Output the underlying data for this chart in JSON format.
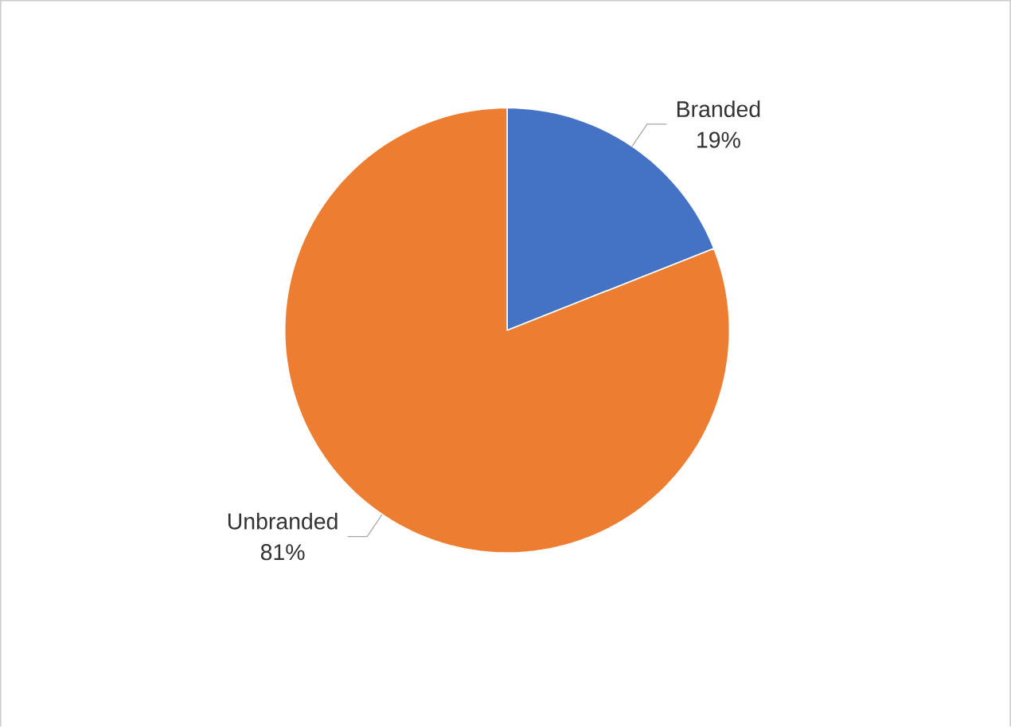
{
  "chart_data": {
    "type": "pie",
    "categories": [
      "Branded",
      "Unbranded"
    ],
    "values": [
      19,
      81
    ],
    "colors": [
      "#4472c4",
      "#ed7d31"
    ],
    "value_labels": [
      "19%",
      "81%"
    ]
  }
}
